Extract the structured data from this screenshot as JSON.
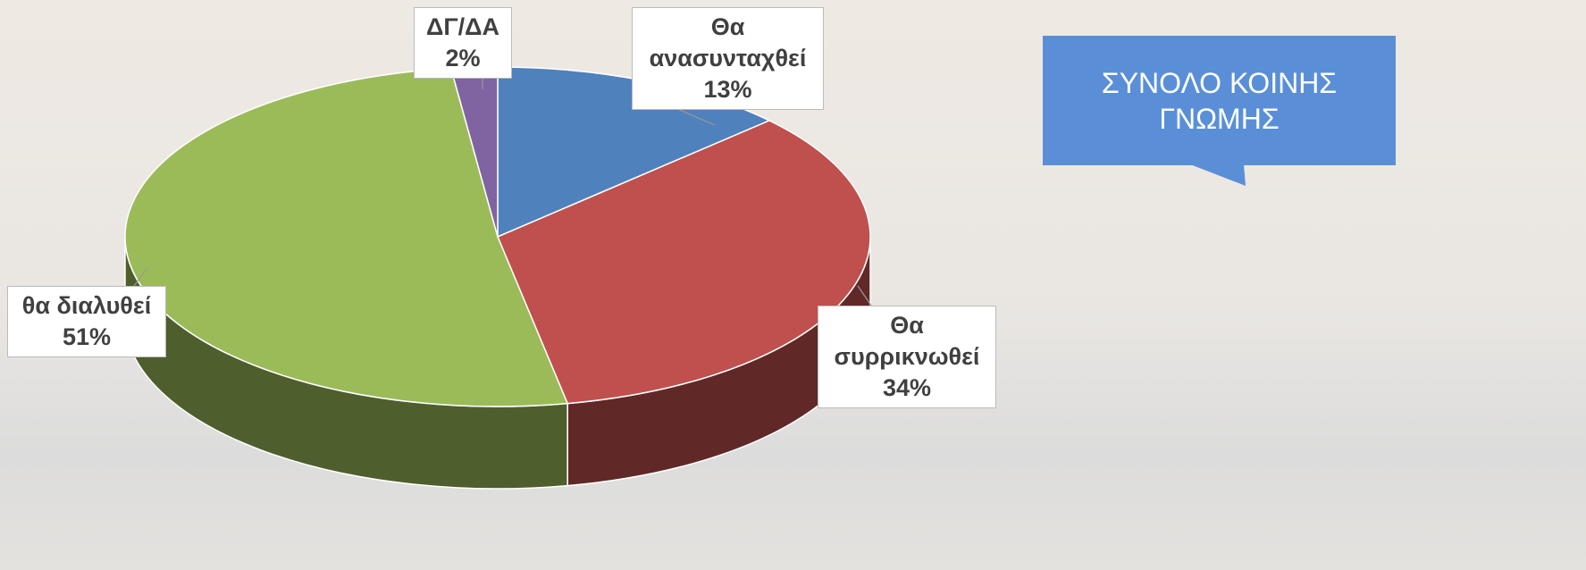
{
  "chart_data": {
    "type": "pie",
    "title": "ΣΥΝΟΛΟ ΚΟΙΝΗΣ ΓΝΩΜΗΣ",
    "categories": [
      "Θα ανασυνταχθεί",
      "Θα συρρικνωθεί",
      "θα διαλυθεί",
      "ΔΓ/ΔΑ"
    ],
    "values": [
      13,
      34,
      51,
      2
    ],
    "value_labels": [
      "13%",
      "34%",
      "51%",
      "2%"
    ],
    "colors": [
      "#4f81bd",
      "#c0504d",
      "#9bbb59",
      "#8064a2"
    ]
  }
}
